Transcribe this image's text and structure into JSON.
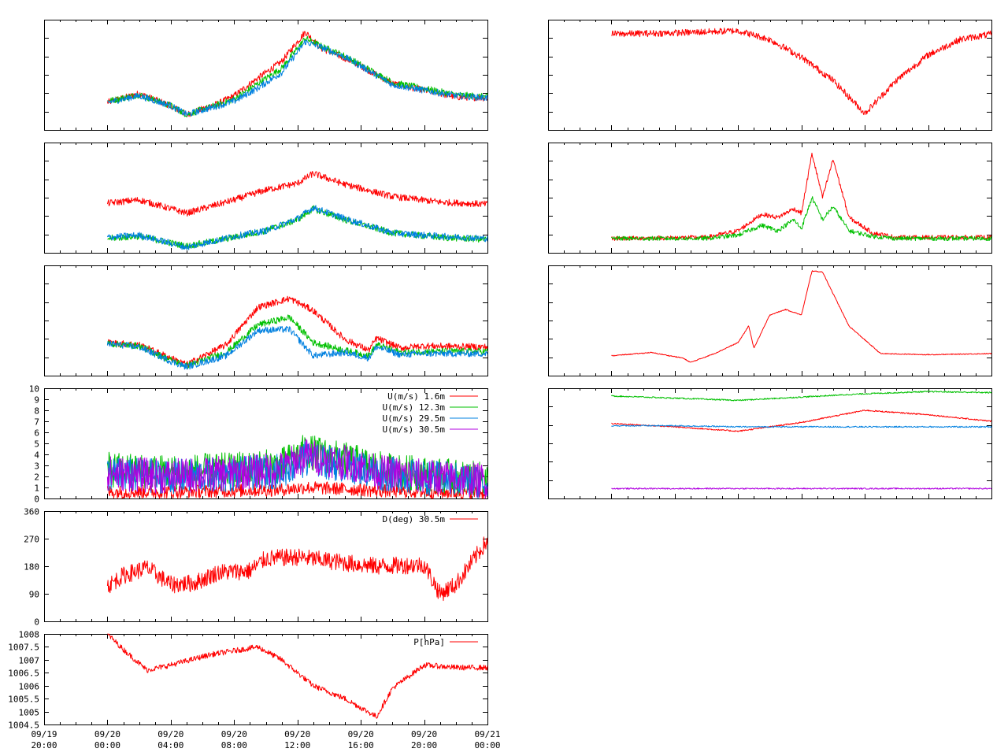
{
  "colors": {
    "red": "#ff0000",
    "green": "#00c000",
    "blue": "#0080e0",
    "purple": "#b000e0",
    "frame": "#000000",
    "background": "#ffffff"
  },
  "time_axis": {
    "x_start": "09/19 20:00",
    "x_end": "09/21 00:00",
    "tick_labels": [
      [
        "09/19",
        "20:00"
      ],
      [
        "09/20",
        "00:00"
      ],
      [
        "09/20",
        "04:00"
      ],
      [
        "09/20",
        "08:00"
      ],
      [
        "09/20",
        "12:00"
      ],
      [
        "09/20",
        "16:00"
      ],
      [
        "09/20",
        "20:00"
      ],
      [
        "09/21",
        "00:00"
      ]
    ]
  },
  "chart_data": [
    {
      "id": "left-1",
      "type": "line",
      "unlabeled_y": true,
      "ylim": [
        0,
        10
      ],
      "x": [
        "09/20 00:00",
        "09/20 02:00",
        "09/20 04:00",
        "09/20 05:00",
        "09/20 07:00",
        "09/20 08:00",
        "09/20 09:30",
        "09/20 11:00",
        "09/20 12:30",
        "09/20 13:30",
        "09/20 15:00",
        "09/20 16:00",
        "09/20 18:00",
        "09/20 22:00",
        "09/21 00:00"
      ],
      "series": [
        {
          "color": "red",
          "values": [
            2.5,
            3.3,
            2.2,
            1.4,
            2.4,
            3.1,
            4.7,
            6.2,
            8.9,
            7.4,
            6.5,
            5.8,
            4.2,
            3.0,
            2.9
          ]
        },
        {
          "color": "green",
          "values": [
            2.6,
            3.2,
            2.2,
            1.4,
            2.3,
            2.8,
            4.2,
            5.6,
            8.3,
            7.6,
            6.7,
            5.9,
            4.3,
            3.2,
            3.0
          ]
        },
        {
          "color": "blue",
          "values": [
            2.5,
            3.1,
            2.2,
            1.4,
            2.2,
            2.6,
            3.8,
            5.2,
            8.0,
            7.5,
            6.6,
            5.8,
            4.1,
            3.1,
            2.9
          ]
        }
      ]
    },
    {
      "id": "left-2",
      "type": "line",
      "unlabeled_y": true,
      "ylim": [
        0,
        10
      ],
      "x": [
        "09/20 00:00",
        "09/20 02:00",
        "09/20 05:00",
        "09/20 08:00",
        "09/20 10:00",
        "09/20 12:00",
        "09/20 13:00",
        "09/20 15:00",
        "09/20 18:00",
        "09/20 21:00",
        "09/21 00:00"
      ],
      "series": [
        {
          "color": "red",
          "values": [
            4.5,
            4.8,
            3.6,
            4.8,
            5.7,
            6.3,
            7.2,
            6.2,
            5.1,
            4.6,
            4.4
          ]
        },
        {
          "color": "green",
          "values": [
            1.3,
            1.5,
            0.6,
            1.4,
            2.0,
            3.0,
            4.0,
            3.0,
            1.8,
            1.4,
            1.2
          ]
        },
        {
          "color": "blue",
          "values": [
            1.4,
            1.6,
            0.5,
            1.5,
            2.0,
            3.1,
            4.1,
            3.1,
            1.8,
            1.5,
            1.3
          ]
        }
      ]
    },
    {
      "id": "left-3",
      "type": "line",
      "unlabeled_y": true,
      "ylim": [
        0,
        10
      ],
      "x": [
        "09/20 00:00",
        "09/20 02:00",
        "09/20 04:00",
        "09/20 05:00",
        "09/20 07:30",
        "09/20 09:30",
        "09/20 11:30",
        "09/20 13:00",
        "09/20 15:00",
        "09/20 16:30",
        "09/20 17:00",
        "09/20 18:30",
        "09/20 20:00",
        "09/21 00:00"
      ],
      "series": [
        {
          "color": "red",
          "values": [
            3.0,
            2.8,
            1.6,
            1.0,
            2.8,
            6.2,
            7.0,
            5.9,
            3.3,
            2.3,
            3.4,
            2.5,
            2.7,
            2.6
          ]
        },
        {
          "color": "green",
          "values": [
            2.9,
            2.7,
            1.4,
            0.9,
            2.1,
            4.6,
            5.3,
            3.0,
            2.3,
            1.8,
            2.8,
            2.1,
            2.2,
            2.2
          ]
        },
        {
          "color": "blue",
          "values": [
            2.9,
            2.6,
            1.3,
            0.8,
            1.8,
            4.1,
            4.2,
            1.8,
            2.1,
            1.6,
            2.6,
            1.9,
            2.0,
            2.0
          ]
        }
      ]
    },
    {
      "id": "left-4",
      "type": "line",
      "ylim": [
        0,
        10
      ],
      "y_ticks": [
        "0",
        "1",
        "2",
        "3",
        "4",
        "5",
        "6",
        "7",
        "8",
        "9",
        "10"
      ],
      "legend": [
        "U(m/s)  1.6m",
        "U(m/s) 12.3m",
        "U(m/s) 29.5m",
        "U(m/s) 30.5m"
      ],
      "x": [
        "09/20 00:00",
        "09/20 04:00",
        "09/20 08:00",
        "09/20 11:00",
        "09/20 12:30",
        "09/20 16:00",
        "09/20 17:00",
        "09/20 20:00",
        "09/21 00:00"
      ],
      "series": [
        {
          "name": "U(m/s)  1.6m",
          "color": "red",
          "values": [
            0.6,
            0.6,
            0.7,
            0.8,
            1.0,
            0.8,
            0.7,
            0.6,
            0.5
          ]
        },
        {
          "name": "U(m/s) 12.3m",
          "color": "green",
          "values": [
            2.6,
            2.4,
            2.6,
            3.0,
            4.3,
            3.2,
            2.7,
            2.2,
            1.7
          ]
        },
        {
          "name": "U(m/s) 29.5m",
          "color": "blue",
          "values": [
            2.2,
            2.0,
            2.2,
            2.5,
            3.6,
            2.8,
            2.3,
            1.9,
            1.5
          ]
        },
        {
          "name": "U(m/s) 30.5m",
          "color": "purple",
          "values": [
            2.3,
            2.0,
            2.3,
            2.7,
            3.9,
            3.0,
            2.4,
            2.0,
            1.6
          ]
        }
      ]
    },
    {
      "id": "left-5",
      "type": "line",
      "ylim": [
        0,
        360
      ],
      "y_ticks": [
        "0",
        "90",
        "180",
        "270",
        "360"
      ],
      "legend": [
        "D(deg)  30.5m"
      ],
      "x": [
        "09/20 00:00",
        "09/20 01:00",
        "09/20 02:30",
        "09/20 04:00",
        "09/20 05:30",
        "09/20 07:00",
        "09/20 09:00",
        "09/20 10:00",
        "09/20 12:00",
        "09/20 16:00",
        "09/20 17:00",
        "09/20 20:00",
        "09/20 21:00",
        "09/20 22:00",
        "09/21 00:00"
      ],
      "series": [
        {
          "name": "D(deg)  30.5m",
          "color": "red",
          "values": [
            115,
            150,
            175,
            120,
            125,
            160,
            165,
            205,
            210,
            185,
            180,
            185,
            90,
            120,
            265
          ]
        }
      ]
    },
    {
      "id": "left-6",
      "type": "line",
      "ylim": [
        1004.5,
        1008
      ],
      "y_ticks": [
        "1004.5",
        "1005",
        "1005.5",
        "1006",
        "1006.5",
        "1007",
        "1007.5",
        "1008"
      ],
      "legend": [
        "P[hPa]"
      ],
      "x": [
        "09/20 00:00",
        "09/20 01:00",
        "09/20 02:30",
        "09/20 04:00",
        "09/20 06:30",
        "09/20 09:30",
        "09/20 11:00",
        "09/20 13:00",
        "09/20 15:00",
        "09/20 17:00",
        "09/20 18:00",
        "09/20 20:00",
        "09/20 22:00",
        "09/21 00:00"
      ],
      "series": [
        {
          "name": "P[hPa]",
          "color": "red",
          "values": [
            1008.0,
            1007.4,
            1006.6,
            1006.8,
            1007.2,
            1007.5,
            1007.0,
            1006.0,
            1005.5,
            1004.8,
            1005.9,
            1006.8,
            1006.7,
            1006.7
          ]
        }
      ]
    },
    {
      "id": "right-1",
      "type": "line",
      "unlabeled_y": true,
      "ylim": [
        0,
        10
      ],
      "x": [
        "09/20 00:00",
        "09/20 04:00",
        "09/20 08:00",
        "09/20 10:00",
        "09/20 12:00",
        "09/20 14:00",
        "09/20 16:00",
        "09/20 18:00",
        "09/20 20:00",
        "09/20 22:00",
        "09/21 00:00"
      ],
      "series": [
        {
          "color": "red",
          "values": [
            8.7,
            8.8,
            9.0,
            8.2,
            6.6,
            4.5,
            1.5,
            4.5,
            6.8,
            8.2,
            8.7
          ]
        }
      ]
    },
    {
      "id": "right-2",
      "type": "line",
      "unlabeled_y": true,
      "ylim": [
        0,
        10
      ],
      "x": [
        "09/20 00:00",
        "09/20 06:00",
        "09/20 08:00",
        "09/20 09:30",
        "09/20 10:30",
        "09/20 11:30",
        "09/20 12:00",
        "09/20 12:40",
        "09/20 13:20",
        "09/20 14:00",
        "09/20 15:00",
        "09/20 16:30",
        "09/20 18:00",
        "09/21 00:00"
      ],
      "series": [
        {
          "color": "red",
          "values": [
            1.3,
            1.4,
            2.0,
            3.5,
            3.2,
            4.0,
            3.6,
            9.0,
            5.0,
            8.5,
            3.2,
            1.8,
            1.4,
            1.4
          ]
        },
        {
          "color": "green",
          "values": [
            1.3,
            1.3,
            1.6,
            2.5,
            2.0,
            3.0,
            2.2,
            5.0,
            3.0,
            4.2,
            2.0,
            1.5,
            1.3,
            1.3
          ]
        }
      ]
    },
    {
      "id": "right-3",
      "type": "line",
      "unlabeled_y": true,
      "ylim": [
        0,
        10
      ],
      "x": [
        "09/20 00:00",
        "09/20 02:30",
        "09/20 04:30",
        "09/20 05:00",
        "09/20 06:30",
        "09/20 08:00",
        "09/20 08:40",
        "09/20 09:00",
        "09/20 10:00",
        "09/20 11:00",
        "09/20 12:00",
        "09/20 12:40",
        "09/20 13:20",
        "09/20 15:00",
        "09/20 17:00",
        "09/20 20:00",
        "09/21 00:00"
      ],
      "series": [
        {
          "color": "red",
          "values": [
            1.8,
            2.1,
            1.6,
            1.2,
            2.0,
            3.0,
            4.5,
            2.5,
            5.5,
            6.0,
            5.5,
            9.5,
            9.4,
            4.5,
            2.0,
            1.9,
            2.0
          ]
        }
      ]
    },
    {
      "id": "right-4",
      "type": "line",
      "unlabeled_y": true,
      "ylim": [
        0,
        10
      ],
      "x": [
        "09/20 00:00",
        "09/20 04:00",
        "09/20 08:00",
        "09/20 12:00",
        "09/20 16:00",
        "09/20 20:00",
        "09/21 00:00"
      ],
      "series": [
        {
          "color": "green",
          "values": [
            9.3,
            9.1,
            8.9,
            9.2,
            9.5,
            9.7,
            9.6
          ]
        },
        {
          "color": "red",
          "values": [
            6.8,
            6.5,
            6.1,
            6.9,
            8.0,
            7.6,
            7.0
          ]
        },
        {
          "color": "blue",
          "values": [
            6.6,
            6.6,
            6.5,
            6.5,
            6.5,
            6.5,
            6.5
          ]
        },
        {
          "color": "purple",
          "values": [
            0.9,
            0.9,
            0.9,
            0.9,
            0.9,
            0.9,
            0.9
          ]
        }
      ]
    }
  ]
}
